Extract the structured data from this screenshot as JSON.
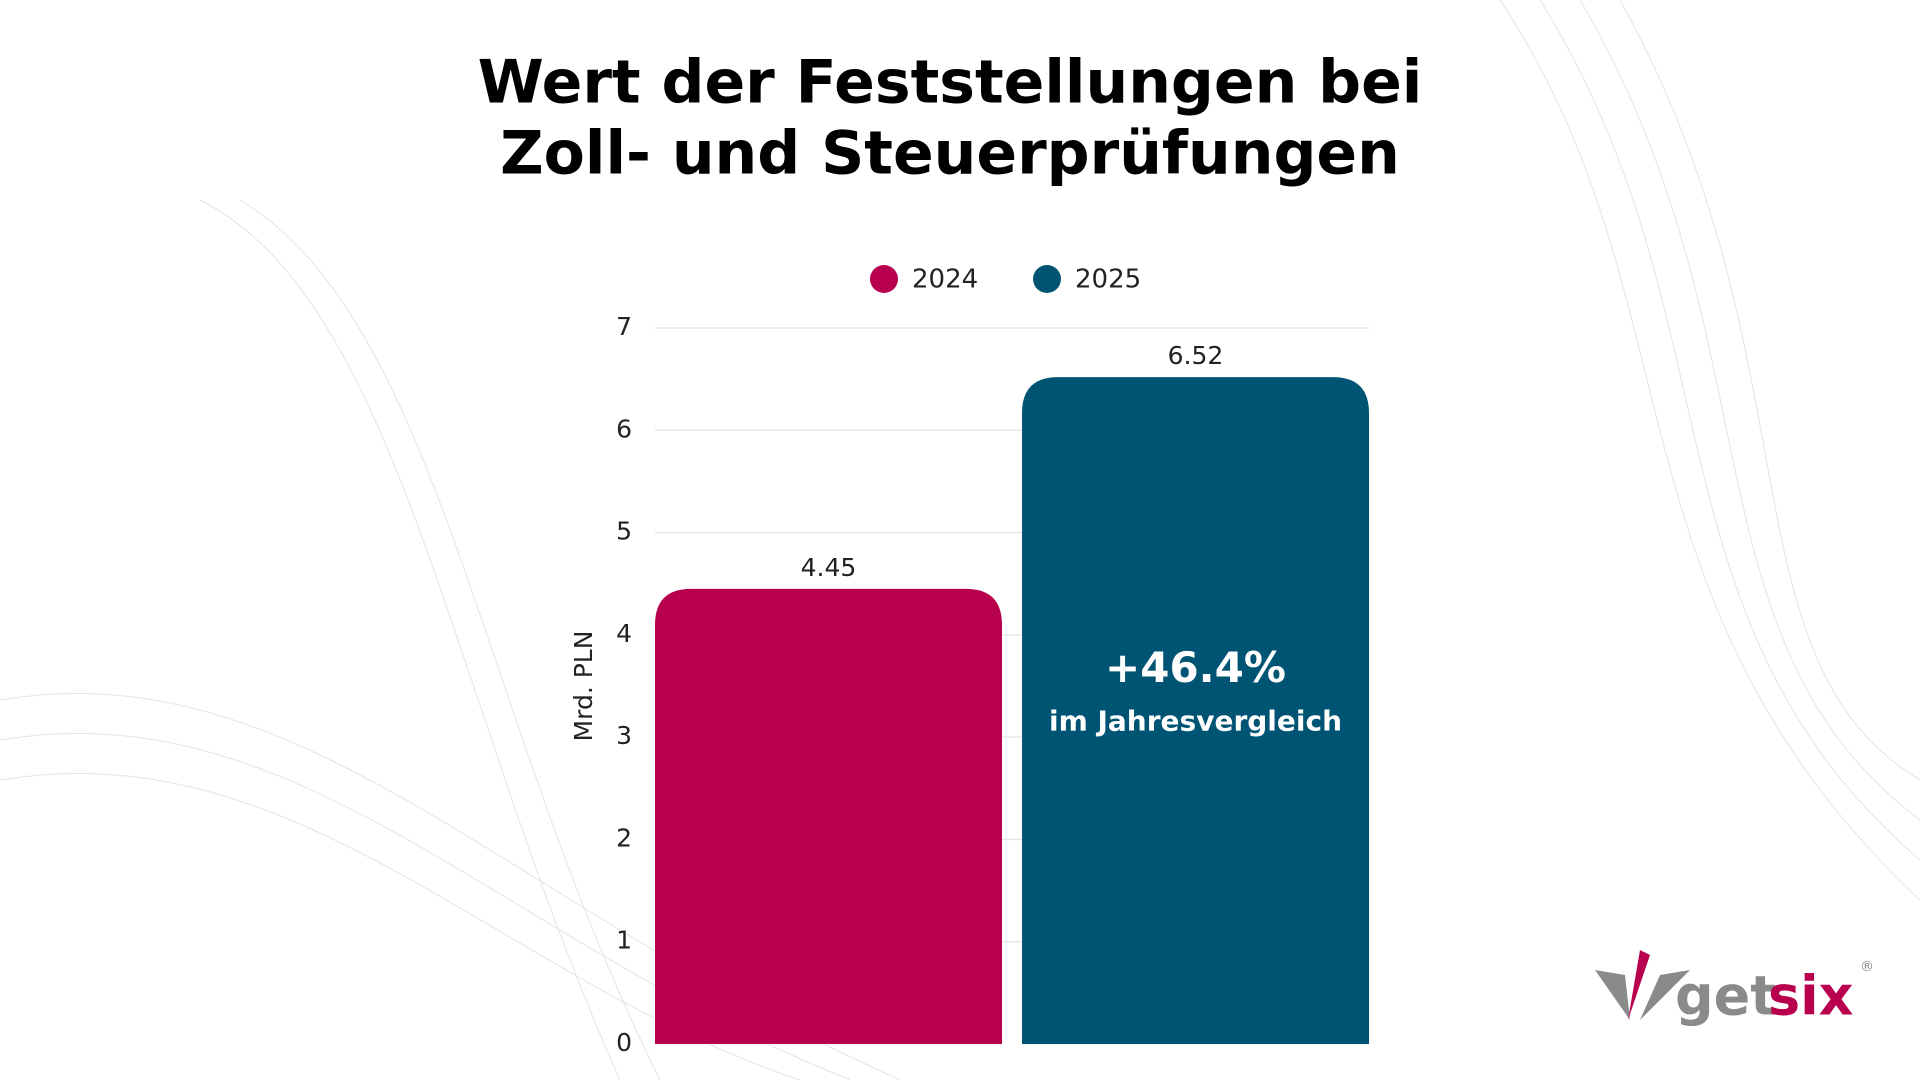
{
  "chart_data": {
    "type": "bar",
    "title": [
      "Wert der Feststellungen bei",
      "Zoll- und Steuerprüfungen"
    ],
    "ylabel": "Mrd. PLN",
    "categories": [
      null
    ],
    "series": [
      {
        "name": "2024",
        "color": "#b8004e",
        "values": [
          4.45
        ]
      },
      {
        "name": "2025",
        "color": "#005473",
        "values": [
          6.52
        ]
      }
    ],
    "ylim": [
      0,
      7
    ],
    "yticks": [
      0,
      1,
      2,
      3,
      4,
      5,
      6,
      7
    ],
    "grid": true,
    "legend": "top",
    "annotation": {
      "value": "+46.4%",
      "text": "im Jahresvergleich"
    },
    "logo": {
      "part1": "get",
      "part2": "six",
      "mark": "®"
    }
  }
}
